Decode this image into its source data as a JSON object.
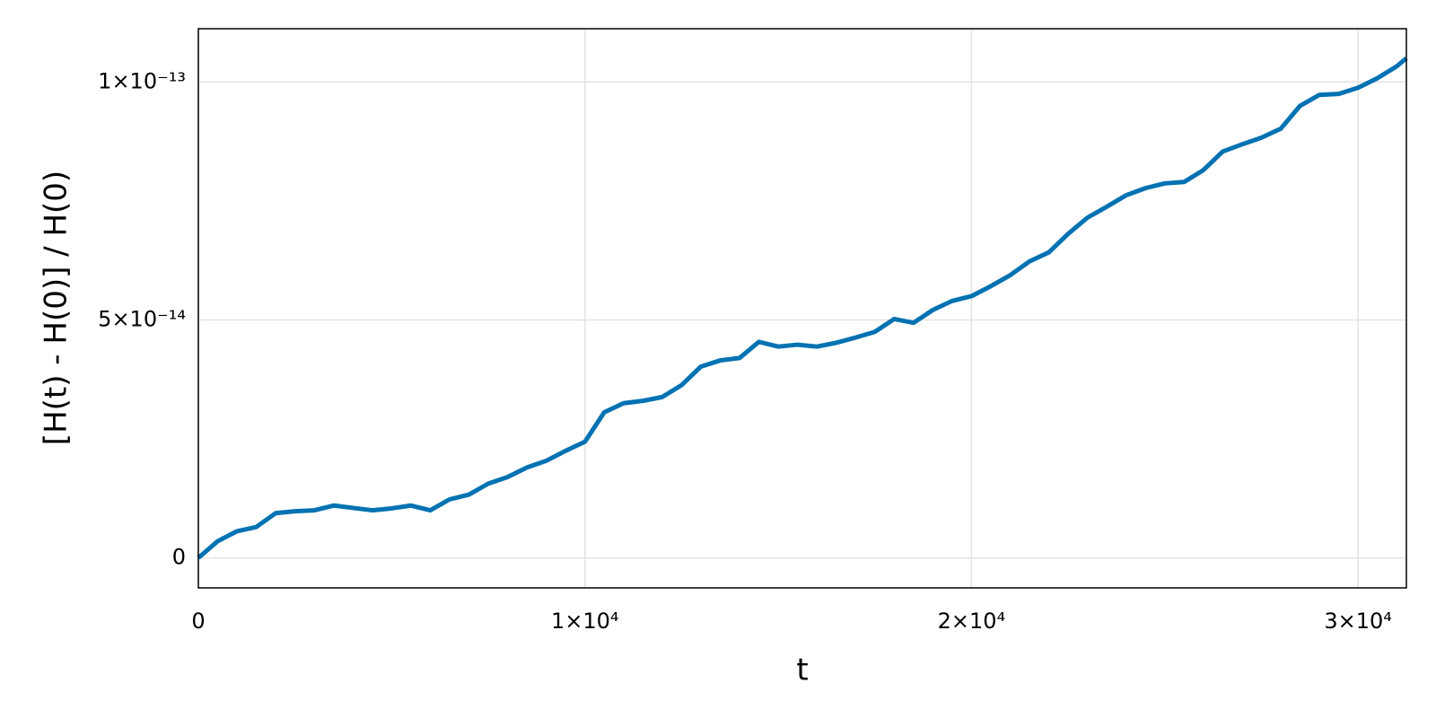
{
  "chart_data": {
    "type": "line",
    "x_label": "t",
    "y_label": "[H(t) - H(0)] / H(0)",
    "color": "#0072b2",
    "grid": true,
    "xlim": [
      0,
      31250
    ],
    "ylim": [
      -6.3e-15,
      1.112e-13
    ],
    "xticks": [
      0,
      {
        "value": 10000,
        "label": "1×10⁴"
      },
      {
        "value": 20000,
        "label": "2×10⁴"
      },
      {
        "value": 30000,
        "label": "3×10⁴"
      }
    ],
    "yticks": [
      0,
      {
        "value": 5e-14,
        "label": "5×10⁻¹⁴"
      },
      {
        "value": 1e-13,
        "label": "1×10⁻¹³"
      }
    ],
    "x": [
      0,
      500,
      1000,
      1500,
      2000,
      2500,
      3000,
      3500,
      4000,
      4500,
      5000,
      5500,
      6000,
      6500,
      7000,
      7500,
      8000,
      8500,
      9000,
      9500,
      10000,
      10500,
      11000,
      11500,
      12000,
      12500,
      13000,
      13500,
      14000,
      14500,
      15000,
      15500,
      16000,
      16500,
      17000,
      17500,
      18000,
      18500,
      19000,
      19500,
      20000,
      20500,
      21000,
      21500,
      22000,
      22500,
      23000,
      23500,
      24000,
      24500,
      25000,
      25500,
      26000,
      26500,
      27000,
      27500,
      28000,
      28500,
      29000,
      29500,
      30000,
      30500,
      31000,
      31250
    ],
    "values": [
      0,
      3.5e-15,
      5.6e-15,
      6.5e-15,
      9.4e-15,
      9.8e-15,
      1e-14,
      1.1e-14,
      1.05e-14,
      1e-14,
      1.04e-14,
      1.1e-14,
      1e-14,
      1.23e-14,
      1.33e-14,
      1.56e-14,
      1.7e-14,
      1.9e-14,
      2.04e-14,
      2.25e-14,
      2.44e-14,
      3.06e-14,
      3.25e-14,
      3.3e-14,
      3.38e-14,
      3.63e-14,
      4.02e-14,
      4.15e-14,
      4.2e-14,
      4.54e-14,
      4.44e-14,
      4.48e-14,
      4.44e-14,
      4.52e-14,
      4.63e-14,
      4.75e-14,
      5.02e-14,
      4.94e-14,
      5.21e-14,
      5.4e-14,
      5.5e-14,
      5.71e-14,
      5.94e-14,
      6.23e-14,
      6.42e-14,
      6.81e-14,
      7.15e-14,
      7.38e-14,
      7.62e-14,
      7.77e-14,
      7.87e-14,
      7.9e-14,
      8.15e-14,
      8.54e-14,
      8.69e-14,
      8.83e-14,
      9.02e-14,
      9.5e-14,
      9.73e-14,
      9.75e-14,
      9.88e-14,
      1.008e-13,
      1.033e-13,
      1.05e-13
    ]
  }
}
